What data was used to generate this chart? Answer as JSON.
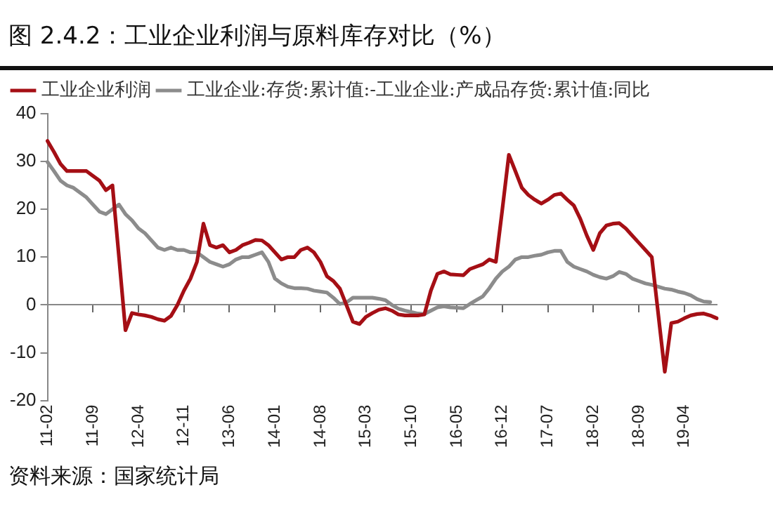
{
  "chart_data": {
    "type": "line",
    "title": "图 2.4.2：工业企业利润与原料库存对比（%）",
    "annotations": [
      "资料来源：国家统计局"
    ],
    "categories": [
      "11-02",
      null,
      null,
      null,
      null,
      null,
      null,
      "11-09",
      null,
      null,
      null,
      null,
      null,
      null,
      "12-04",
      null,
      null,
      null,
      null,
      null,
      null,
      "12-11",
      null,
      null,
      null,
      null,
      null,
      null,
      "13-06",
      null,
      null,
      null,
      null,
      null,
      null,
      "14-01",
      null,
      null,
      null,
      null,
      null,
      null,
      "14-08",
      null,
      null,
      null,
      null,
      null,
      null,
      "15-03",
      null,
      null,
      null,
      null,
      null,
      null,
      "15-10",
      null,
      null,
      null,
      null,
      null,
      null,
      "16-05",
      null,
      null,
      null,
      null,
      null,
      null,
      "16-12",
      null,
      null,
      null,
      null,
      null,
      null,
      "17-07",
      null,
      null,
      null,
      null,
      null,
      null,
      "18-02",
      null,
      null,
      null,
      null,
      null,
      null,
      "18-09",
      null,
      null,
      null,
      null,
      null,
      null,
      "19-04",
      null,
      null,
      null,
      null,
      null
    ],
    "series": [
      {
        "name": "工业企业利润",
        "color": "#a50f15",
        "values": [
          34.3,
          32,
          29.5,
          28,
          28,
          28,
          28,
          27,
          26,
          24,
          25,
          10,
          -5.3,
          -1.7,
          -2,
          -2.2,
          -2.5,
          -3,
          -3.3,
          -2.3,
          0,
          3,
          5.5,
          9,
          17,
          12.5,
          12,
          12.5,
          11,
          11.5,
          12.5,
          13,
          13.6,
          13.5,
          12.5,
          11,
          9.5,
          10,
          10,
          11.5,
          12,
          11,
          9,
          6,
          5,
          3.4,
          0,
          -3.5,
          -4,
          -2.5,
          -1.7,
          -1,
          -0.7,
          -1.2,
          -2,
          -2.2,
          -2.2,
          -2.2,
          -2,
          3,
          6.5,
          7,
          6.4,
          6.3,
          6.2,
          7.5,
          8,
          8.5,
          9.5,
          9,
          20,
          31.4,
          28,
          24.5,
          23,
          22,
          21.2,
          22,
          23,
          23.3,
          22,
          20.8,
          18,
          14.5,
          11.5,
          15,
          16.6,
          17,
          17.1,
          16,
          14.5,
          13,
          11.5,
          10,
          -2,
          -14,
          -3.8,
          -3.5,
          -2.8,
          -2.2,
          -1.9,
          -1.8,
          -2.2,
          -2.8
        ]
      },
      {
        "name": "工业企业:存货:累计值:-工业企业:产成品存货:累计值:同比",
        "color": "#8c8c8c",
        "values": [
          29.9,
          28,
          26,
          25,
          24.5,
          23.5,
          22.5,
          21,
          19.5,
          19,
          20,
          21,
          19,
          17.7,
          16,
          15,
          13.5,
          12,
          11.5,
          12,
          11.5,
          11.5,
          11,
          11,
          10,
          9,
          8.5,
          8,
          8.5,
          9.5,
          10,
          10,
          10.5,
          11,
          9,
          5.5,
          4.5,
          3.8,
          3.5,
          3.5,
          3.4,
          3,
          2.8,
          2.6,
          1.5,
          0.2,
          0.5,
          1.5,
          1.5,
          1.5,
          1.5,
          1.3,
          1,
          0,
          -0.8,
          -1.2,
          -1.5,
          -1.8,
          -1.9,
          -1.2,
          -0.5,
          -0.3,
          -0.5,
          -0.6,
          -0.7,
          0.2,
          1,
          1.8,
          3.5,
          5.5,
          7,
          8,
          9.5,
          10,
          10,
          10.3,
          10.5,
          11,
          11.3,
          11.3,
          9,
          8,
          7.5,
          7,
          6.3,
          5.8,
          5.5,
          6,
          6.9,
          6.5,
          5.5,
          5,
          4.5,
          4.2,
          3.8,
          3.4,
          3.2,
          2.8,
          2.5,
          2,
          1.2,
          0.7,
          0.6,
          null
        ]
      }
    ],
    "ylim": [
      -20,
      40
    ],
    "yticks": [
      -20,
      -10,
      0,
      10,
      20,
      30,
      40
    ],
    "legend": "top left",
    "marker": "none",
    "line_style": "solid"
  }
}
